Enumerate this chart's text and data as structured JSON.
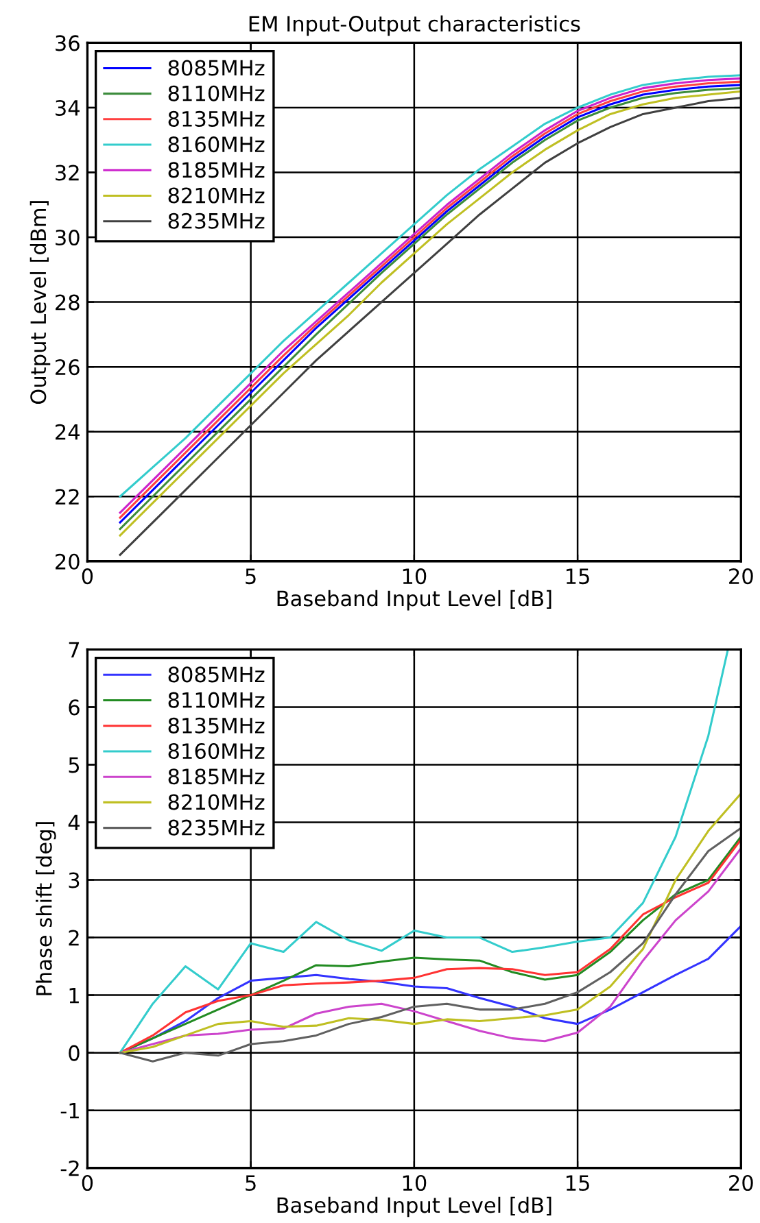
{
  "chart_data": [
    {
      "type": "line",
      "title": "EM Input-Output characteristics",
      "xlabel": "Baseband Input Level [dB]",
      "ylabel": "Output Level [dBm]",
      "x": [
        1,
        2,
        3,
        4,
        5,
        6,
        7,
        8,
        9,
        10,
        11,
        12,
        13,
        14,
        15,
        16,
        17,
        18,
        19,
        20
      ],
      "xlim": [
        0,
        20
      ],
      "xticks": [
        0,
        5,
        10,
        15,
        20
      ],
      "ylim": [
        20,
        36
      ],
      "yticks": [
        20,
        22,
        24,
        26,
        28,
        30,
        32,
        34,
        36
      ],
      "grid": true,
      "legend": "top left",
      "series": [
        {
          "name": "8085MHz",
          "color": "#0000ff",
          "values": [
            21.2,
            22.2,
            23.2,
            24.2,
            25.2,
            26.2,
            27.2,
            28.1,
            29.0,
            29.9,
            30.8,
            31.6,
            32.4,
            33.1,
            33.7,
            34.1,
            34.4,
            34.55,
            34.65,
            34.7
          ]
        },
        {
          "name": "8110MHz",
          "color": "#3c8c3c",
          "values": [
            21.0,
            22.0,
            23.0,
            24.0,
            25.0,
            26.0,
            27.0,
            27.95,
            28.9,
            29.8,
            30.7,
            31.5,
            32.3,
            33.0,
            33.6,
            34.0,
            34.3,
            34.45,
            34.55,
            34.6
          ]
        },
        {
          "name": "8135MHz",
          "color": "#ff4040",
          "values": [
            21.35,
            22.35,
            23.35,
            24.35,
            25.35,
            26.35,
            27.3,
            28.2,
            29.1,
            30.0,
            30.9,
            31.7,
            32.5,
            33.2,
            33.8,
            34.2,
            34.5,
            34.65,
            34.75,
            34.8
          ]
        },
        {
          "name": "8160MHz",
          "color": "#33cccc",
          "values": [
            22.0,
            22.9,
            23.8,
            24.8,
            25.8,
            26.8,
            27.7,
            28.6,
            29.5,
            30.4,
            31.3,
            32.1,
            32.8,
            33.5,
            34.0,
            34.4,
            34.7,
            34.85,
            34.95,
            35.0
          ]
        },
        {
          "name": "8185MHz",
          "color": "#cc22cc",
          "values": [
            21.5,
            22.5,
            23.5,
            24.5,
            25.5,
            26.5,
            27.4,
            28.3,
            29.2,
            30.1,
            31.0,
            31.8,
            32.6,
            33.3,
            33.9,
            34.3,
            34.6,
            34.75,
            34.85,
            34.9
          ]
        },
        {
          "name": "8210MHz",
          "color": "#bfbf22",
          "values": [
            20.8,
            21.8,
            22.8,
            23.8,
            24.8,
            25.8,
            26.7,
            27.6,
            28.6,
            29.5,
            30.4,
            31.2,
            32.0,
            32.7,
            33.3,
            33.8,
            34.1,
            34.3,
            34.4,
            34.5
          ]
        },
        {
          "name": "8235MHz",
          "color": "#404040",
          "values": [
            20.2,
            21.2,
            22.2,
            23.2,
            24.2,
            25.2,
            26.2,
            27.1,
            28.0,
            28.9,
            29.8,
            30.7,
            31.5,
            32.3,
            32.9,
            33.4,
            33.8,
            34.0,
            34.2,
            34.3
          ]
        }
      ]
    },
    {
      "type": "line",
      "xlabel": "Baseband Input Level [dB]",
      "ylabel": "Phase shift [deg]",
      "x": [
        1,
        2,
        3,
        4,
        5,
        6,
        7,
        8,
        9,
        10,
        11,
        12,
        13,
        14,
        15,
        16,
        17,
        18,
        19,
        20
      ],
      "xlim": [
        0,
        20
      ],
      "xticks": [
        0,
        5,
        10,
        15,
        20
      ],
      "ylim": [
        -2,
        7
      ],
      "yticks": [
        -2,
        -1,
        0,
        1,
        2,
        3,
        4,
        5,
        6,
        7
      ],
      "grid": true,
      "legend": "top left",
      "series": [
        {
          "name": "8085MHz",
          "color": "#3333ff",
          "values": [
            0,
            0.25,
            0.55,
            0.95,
            1.25,
            1.3,
            1.35,
            1.28,
            1.23,
            1.15,
            1.12,
            0.95,
            0.8,
            0.6,
            0.5,
            0.75,
            1.05,
            1.35,
            1.63,
            2.2
          ]
        },
        {
          "name": "8110MHz",
          "color": "#228b22",
          "values": [
            0,
            0.25,
            0.5,
            0.75,
            1.0,
            1.25,
            1.52,
            1.5,
            1.58,
            1.65,
            1.62,
            1.6,
            1.4,
            1.27,
            1.35,
            1.75,
            2.3,
            2.75,
            3.0,
            3.75
          ]
        },
        {
          "name": "8135MHz",
          "color": "#ff3333",
          "values": [
            0,
            0.3,
            0.7,
            0.9,
            1.0,
            1.17,
            1.2,
            1.22,
            1.25,
            1.3,
            1.45,
            1.47,
            1.45,
            1.35,
            1.4,
            1.8,
            2.4,
            2.7,
            2.95,
            3.7
          ]
        },
        {
          "name": "8160MHz",
          "color": "#33cccc",
          "x": [
            1,
            2,
            3,
            4,
            5,
            6,
            7,
            8,
            9,
            10,
            11,
            12,
            13,
            14,
            15,
            16,
            17,
            18,
            19,
            19.6
          ],
          "values": [
            0,
            0.85,
            1.5,
            1.1,
            1.9,
            1.75,
            2.27,
            1.95,
            1.77,
            2.12,
            2.0,
            2.0,
            1.75,
            1.83,
            1.93,
            2.0,
            2.6,
            3.75,
            5.5,
            7.0
          ]
        },
        {
          "name": "8185MHz",
          "color": "#cc44cc",
          "values": [
            0,
            0.15,
            0.3,
            0.33,
            0.4,
            0.42,
            0.68,
            0.8,
            0.85,
            0.72,
            0.55,
            0.38,
            0.25,
            0.2,
            0.35,
            0.8,
            1.6,
            2.3,
            2.8,
            3.55
          ]
        },
        {
          "name": "8210MHz",
          "color": "#bfbf22",
          "values": [
            0,
            0.1,
            0.3,
            0.5,
            0.55,
            0.45,
            0.47,
            0.6,
            0.57,
            0.5,
            0.58,
            0.55,
            0.6,
            0.65,
            0.75,
            1.15,
            1.8,
            3.0,
            3.85,
            4.5
          ]
        },
        {
          "name": "8235MHz",
          "color": "#606060",
          "values": [
            0,
            -0.15,
            0.0,
            -0.05,
            0.15,
            0.2,
            0.3,
            0.5,
            0.62,
            0.8,
            0.85,
            0.75,
            0.75,
            0.85,
            1.05,
            1.4,
            1.9,
            2.75,
            3.5,
            3.9
          ]
        }
      ]
    }
  ]
}
